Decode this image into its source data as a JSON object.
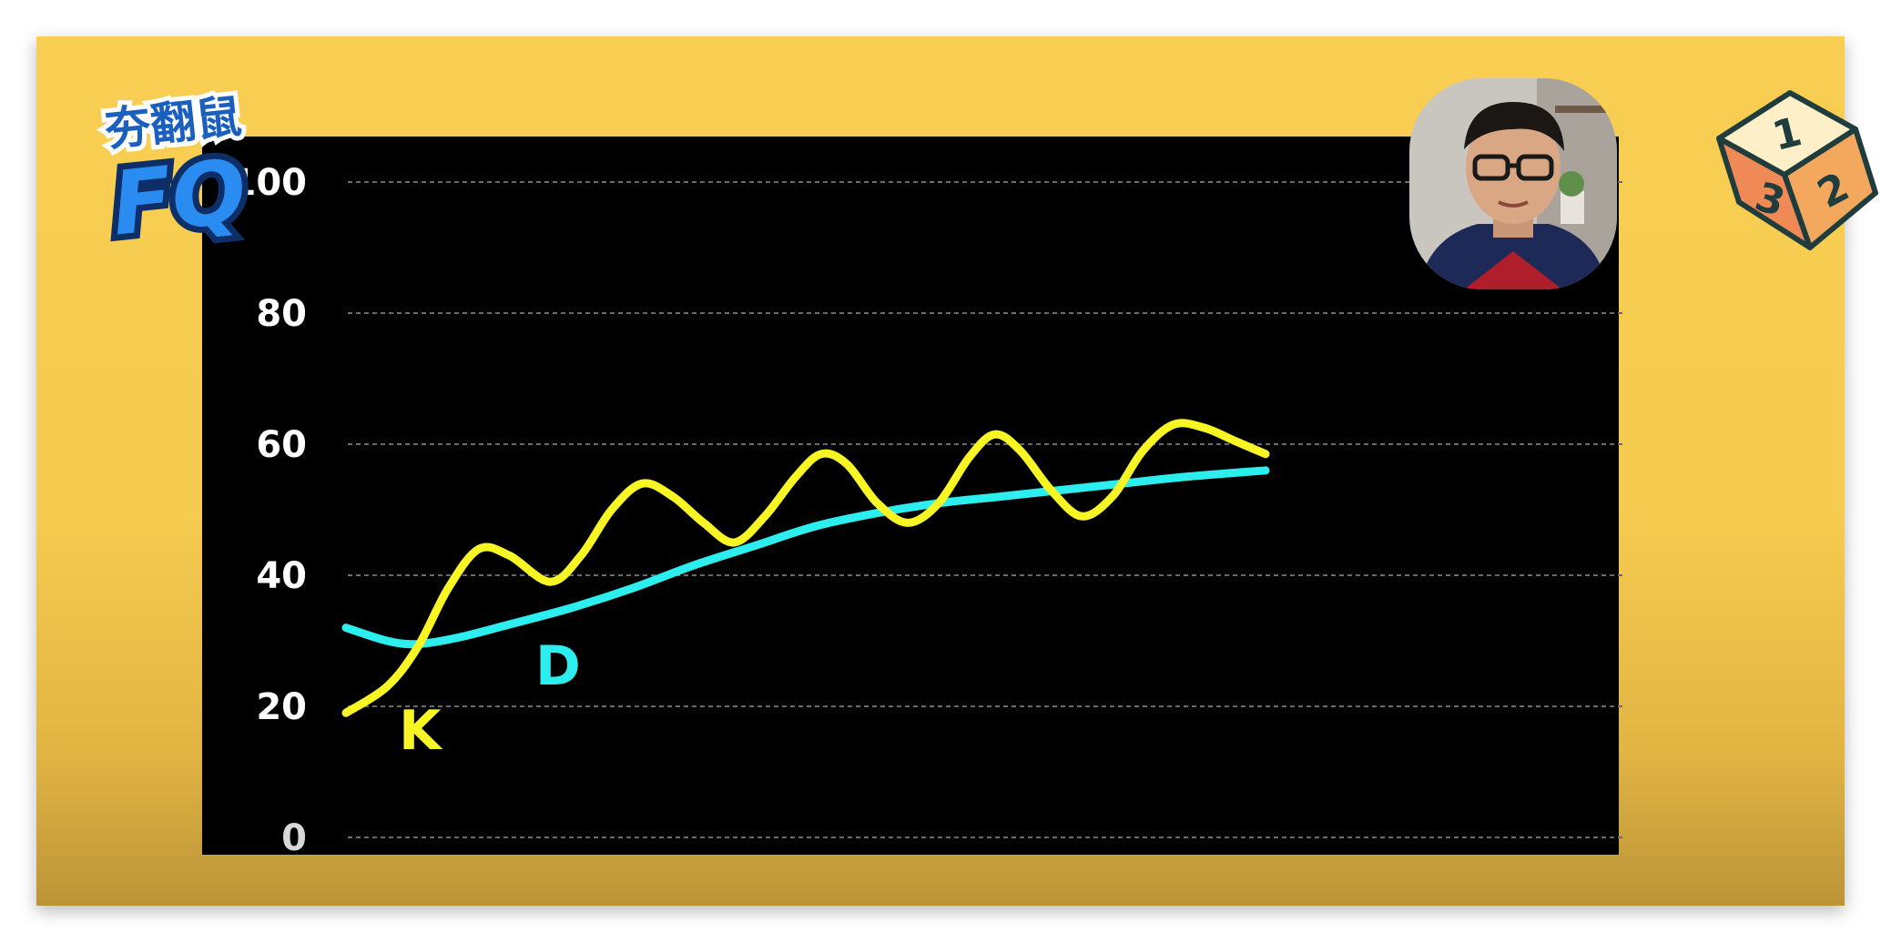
{
  "brand": {
    "logo_line1": "夯翻鼠",
    "logo_line2": "FQ"
  },
  "dice": {
    "faces": [
      "1",
      "2",
      "3"
    ]
  },
  "colors": {
    "background": "#f6cd50",
    "plot_background": "#000000",
    "k_line": "#f7f523",
    "d_line": "#2deeee",
    "grid": "#6a6a6a",
    "tick_text": "#ffffff"
  },
  "chart_data": {
    "type": "line",
    "title": "",
    "xlabel": "",
    "ylabel": "",
    "ylim": [
      0,
      100
    ],
    "yticks": [
      "0",
      "20",
      "40",
      "60",
      "80",
      "100"
    ],
    "grid": true,
    "series": [
      {
        "name": "K",
        "color": "#f7f523",
        "points": [
          [
            0,
            19
          ],
          [
            4,
            23
          ],
          [
            7,
            29
          ],
          [
            10,
            38
          ],
          [
            13,
            44
          ],
          [
            16,
            43
          ],
          [
            20,
            39
          ],
          [
            23,
            43
          ],
          [
            26,
            50
          ],
          [
            29,
            54
          ],
          [
            32,
            52
          ],
          [
            35,
            48
          ],
          [
            38,
            45
          ],
          [
            41,
            49
          ],
          [
            44,
            55
          ],
          [
            46.5,
            58.5
          ],
          [
            49,
            57
          ],
          [
            52,
            51
          ],
          [
            55,
            48
          ],
          [
            58,
            51
          ],
          [
            61,
            58
          ],
          [
            63.5,
            61.5
          ],
          [
            66,
            59
          ],
          [
            69,
            53
          ],
          [
            72,
            49
          ],
          [
            75,
            52
          ],
          [
            78,
            59
          ],
          [
            81,
            63
          ],
          [
            84,
            62.5
          ],
          [
            87,
            60.5
          ],
          [
            90,
            58.5
          ]
        ]
      },
      {
        "name": "D",
        "color": "#2deeee",
        "points": [
          [
            0,
            32
          ],
          [
            4,
            30
          ],
          [
            7,
            29.5
          ],
          [
            11,
            30.5
          ],
          [
            16,
            32.5
          ],
          [
            22,
            35
          ],
          [
            28,
            38
          ],
          [
            34,
            41.5
          ],
          [
            40,
            44.5
          ],
          [
            46,
            47.5
          ],
          [
            52,
            49.5
          ],
          [
            58,
            51
          ],
          [
            64,
            52
          ],
          [
            70,
            53
          ],
          [
            76,
            54
          ],
          [
            82,
            55
          ],
          [
            90,
            56
          ]
        ]
      }
    ]
  }
}
